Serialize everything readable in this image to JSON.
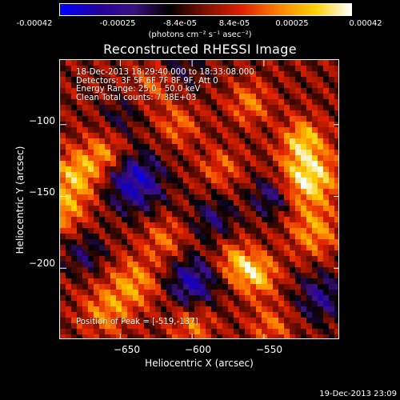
{
  "colorbar": {
    "ticks": [
      "-0.00042",
      "-0.00025",
      "-8.4e-05",
      "8.4e-05",
      "0.00025",
      "0.00042"
    ],
    "units": "(photons cm⁻² s⁻¹ asec⁻²)"
  },
  "title": "Reconstructed RHESSI Image",
  "info": {
    "time": "18-Dec-2013 18:29:40.000 to 18:33:08.000",
    "detectors": "Detectors: 3F 5F 6F 7F 8F 9F, Att 0",
    "energy": "Energy Range: 25.0 - 50.0 keV",
    "clean": "Clean     Total counts: 7.38E+03"
  },
  "peak": "Position of Peak = [-519,-137]",
  "chart_data": {
    "type": "heatmap",
    "title": "Reconstructed RHESSI Image",
    "xlabel": "Heliocentric X (arcsec)",
    "ylabel": "Heliocentric Y (arcsec)",
    "xlim": [
      -692,
      -497
    ],
    "ylim": [
      -250,
      -55
    ],
    "xticks": [
      -650,
      -600,
      -550
    ],
    "yticks": [
      -100,
      -150,
      -200
    ],
    "zlim": [
      -0.00042,
      0.00042
    ],
    "peak_position": [
      -519,
      -137
    ],
    "colormap": [
      "#0000ff",
      "#2000a0",
      "#3a1080",
      "#000000",
      "#801000",
      "#e02000",
      "#ff8000",
      "#ffd000",
      "#ffffff"
    ]
  },
  "timestamp": "19-Dec-2013 23:09"
}
